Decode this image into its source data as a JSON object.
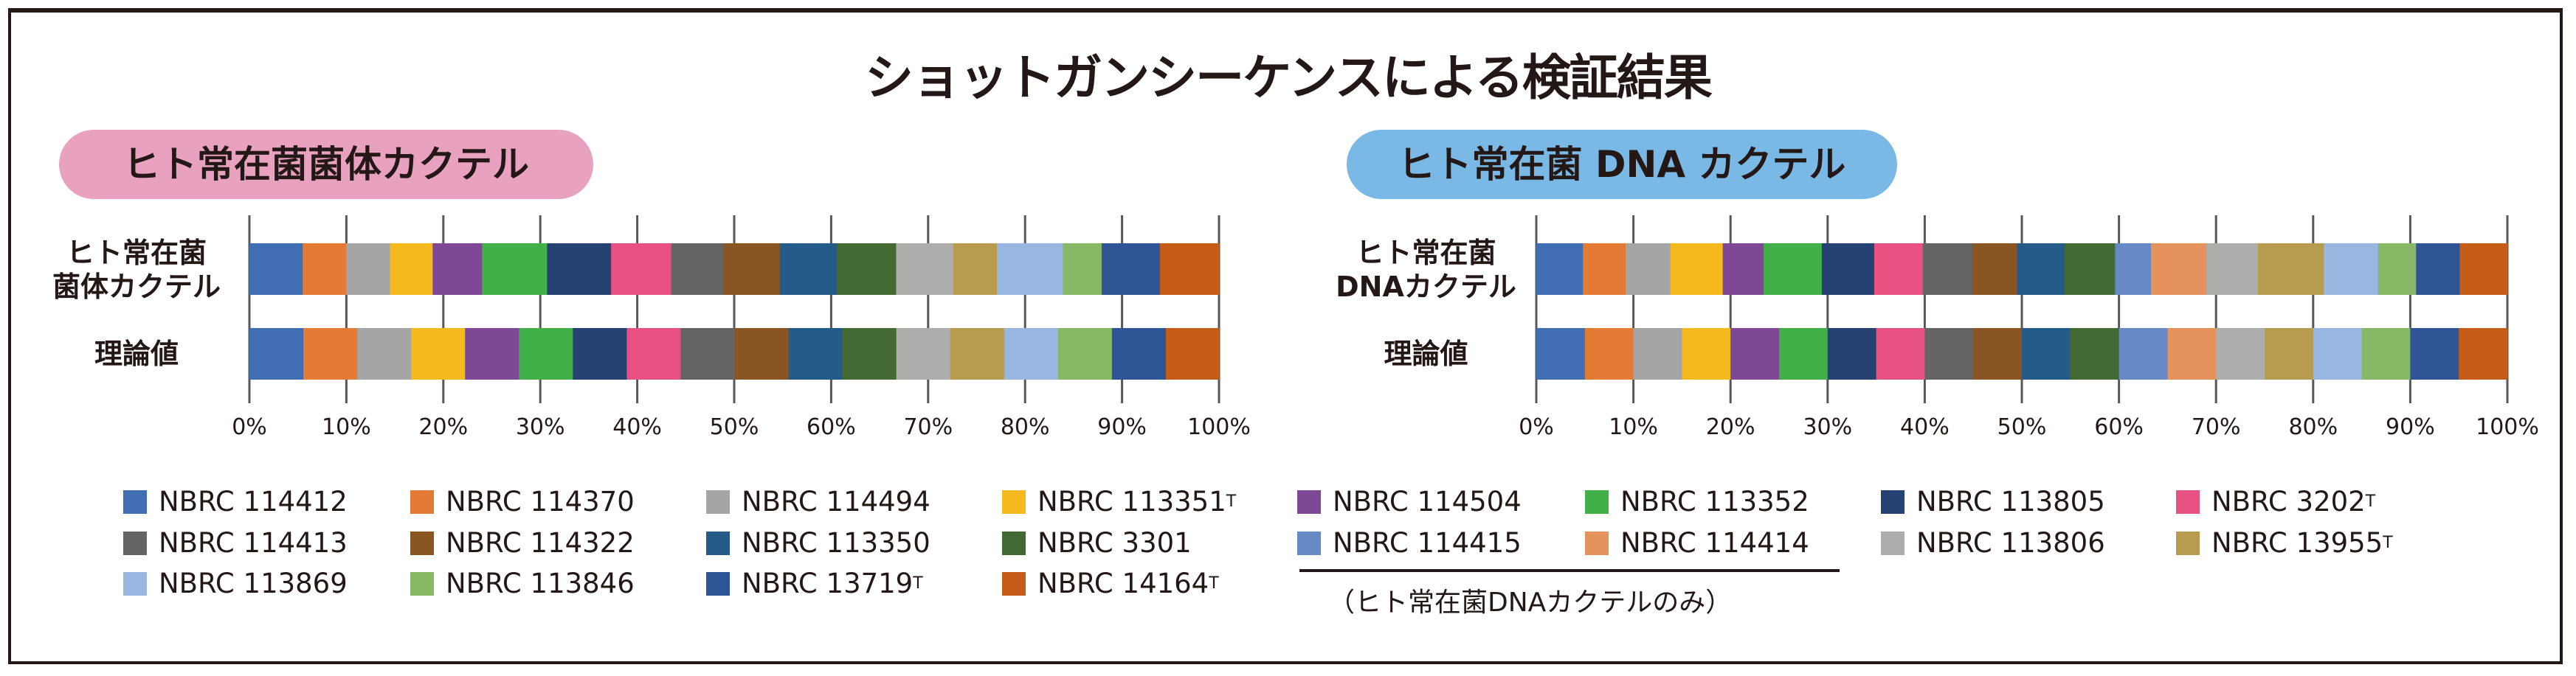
{
  "title": "ショットガンシーケンスによる検証結果",
  "chart_data": [
    {
      "type": "bar",
      "orientation": "horizontal-stacked-100",
      "title": "ヒト常在菌菌体カクテル",
      "title_color": "#e8a2bf",
      "categories": [
        "ヒト常在菌\n菌体カクテル",
        "理論値"
      ],
      "category_lines": [
        [
          "ヒト常在菌",
          "菌体カクテル"
        ],
        [
          "理論値"
        ]
      ],
      "xlim": [
        0,
        100
      ],
      "xticks": [
        "0%",
        "10%",
        "20%",
        "30%",
        "40%",
        "50%",
        "60%",
        "70%",
        "80%",
        "90%",
        "100%"
      ],
      "grid": true,
      "series": [
        {
          "name": "NBRC 114412",
          "values": [
            5.5,
            5.56
          ]
        },
        {
          "name": "NBRC 114370",
          "values": [
            4.5,
            5.56
          ]
        },
        {
          "name": "NBRC 114494",
          "values": [
            4.5,
            5.56
          ]
        },
        {
          "name": "NBRC 113351T",
          "values": [
            4.4,
            5.56
          ]
        },
        {
          "name": "NBRC 114504",
          "values": [
            5.1,
            5.56
          ]
        },
        {
          "name": "NBRC 113352",
          "values": [
            6.7,
            5.56
          ]
        },
        {
          "name": "NBRC 113805",
          "values": [
            6.6,
            5.56
          ]
        },
        {
          "name": "NBRC 3202T",
          "values": [
            6.2,
            5.56
          ]
        },
        {
          "name": "NBRC 114413",
          "values": [
            5.4,
            5.56
          ]
        },
        {
          "name": "NBRC 114322",
          "values": [
            5.8,
            5.56
          ]
        },
        {
          "name": "NBRC 113350",
          "values": [
            5.9,
            5.56
          ]
        },
        {
          "name": "NBRC 3301",
          "values": [
            6.1,
            5.56
          ]
        },
        {
          "name": "NBRC 113806",
          "values": [
            5.9,
            5.56
          ]
        },
        {
          "name": "NBRC 13955T",
          "values": [
            4.5,
            5.56
          ]
        },
        {
          "name": "NBRC 113869",
          "values": [
            6.8,
            5.56
          ]
        },
        {
          "name": "NBRC 113846",
          "values": [
            4.0,
            5.56
          ]
        },
        {
          "name": "NBRC 13719T",
          "values": [
            6.0,
            5.56
          ]
        },
        {
          "name": "NBRC 14164T",
          "values": [
            6.1,
            5.48
          ]
        }
      ]
    },
    {
      "type": "bar",
      "orientation": "horizontal-stacked-100",
      "title": "ヒト常在菌 DNA カクテル",
      "title_color": "#7ab8e6",
      "categories": [
        "ヒト常在菌\nDNAカクテル",
        "理論値"
      ],
      "category_lines": [
        [
          "ヒト常在菌",
          "DNAカクテル"
        ],
        [
          "理論値"
        ]
      ],
      "xlim": [
        0,
        100
      ],
      "xticks": [
        "0%",
        "10%",
        "20%",
        "30%",
        "40%",
        "50%",
        "60%",
        "70%",
        "80%",
        "90%",
        "100%"
      ],
      "grid": true,
      "series": [
        {
          "name": "NBRC 114412",
          "values": [
            4.8,
            5
          ]
        },
        {
          "name": "NBRC 114370",
          "values": [
            4.4,
            5
          ]
        },
        {
          "name": "NBRC 114494",
          "values": [
            4.6,
            5
          ]
        },
        {
          "name": "NBRC 113351T",
          "values": [
            5.4,
            5
          ]
        },
        {
          "name": "NBRC 114504",
          "values": [
            4.2,
            5
          ]
        },
        {
          "name": "NBRC 113352",
          "values": [
            6.0,
            5
          ]
        },
        {
          "name": "NBRC 113805",
          "values": [
            5.4,
            5
          ]
        },
        {
          "name": "NBRC 3202T",
          "values": [
            5.0,
            5
          ]
        },
        {
          "name": "NBRC 114413",
          "values": [
            5.1,
            5
          ]
        },
        {
          "name": "NBRC 114322",
          "values": [
            4.6,
            5
          ]
        },
        {
          "name": "NBRC 113350",
          "values": [
            4.9,
            5
          ]
        },
        {
          "name": "NBRC 3301",
          "values": [
            5.2,
            5
          ]
        },
        {
          "name": "NBRC 114415",
          "values": [
            3.7,
            5
          ]
        },
        {
          "name": "NBRC 114414",
          "values": [
            5.7,
            5
          ]
        },
        {
          "name": "NBRC 113806",
          "values": [
            5.3,
            5
          ]
        },
        {
          "name": "NBRC 13955T",
          "values": [
            6.8,
            5
          ]
        },
        {
          "name": "NBRC 113869",
          "values": [
            5.6,
            5
          ]
        },
        {
          "name": "NBRC 113846",
          "values": [
            3.9,
            5
          ]
        },
        {
          "name": "NBRC 13719T",
          "values": [
            4.5,
            5
          ]
        },
        {
          "name": "NBRC 14164T",
          "values": [
            4.9,
            5
          ]
        }
      ]
    }
  ],
  "legend": {
    "items": [
      {
        "code": "NBRC 114412",
        "sup": "",
        "color": "#416db3"
      },
      {
        "code": "NBRC 114370",
        "sup": "",
        "color": "#e37a35"
      },
      {
        "code": "NBRC 114494",
        "sup": "",
        "color": "#a5a5a5"
      },
      {
        "code": "NBRC 113351",
        "sup": "T",
        "color": "#f4b91d"
      },
      {
        "code": "NBRC 114504",
        "sup": "",
        "color": "#7e4897"
      },
      {
        "code": "NBRC 113352",
        "sup": "",
        "color": "#42b049"
      },
      {
        "code": "NBRC 113805",
        "sup": "",
        "color": "#254273"
      },
      {
        "code": "NBRC 3202",
        "sup": "T",
        "color": "#e85282"
      },
      {
        "code": "NBRC 114413",
        "sup": "",
        "color": "#646464"
      },
      {
        "code": "NBRC 114322",
        "sup": "",
        "color": "#885523"
      },
      {
        "code": "NBRC 113350",
        "sup": "",
        "color": "#245b88"
      },
      {
        "code": "NBRC 3301",
        "sup": "",
        "color": "#426a32"
      },
      {
        "code": "NBRC 114415",
        "sup": "",
        "color": "#6789c5"
      },
      {
        "code": "NBRC 114414",
        "sup": "",
        "color": "#e6925c"
      },
      {
        "code": "NBRC 113806",
        "sup": "",
        "color": "#adadab"
      },
      {
        "code": "NBRC 13955",
        "sup": "T",
        "color": "#b79b4f"
      },
      {
        "code": "NBRC 113869",
        "sup": "",
        "color": "#97b6e0"
      },
      {
        "code": "NBRC 113846",
        "sup": "",
        "color": "#88b866"
      },
      {
        "code": "NBRC 13719",
        "sup": "T",
        "color": "#2f5597"
      },
      {
        "code": "NBRC 14164",
        "sup": "T",
        "color": "#c55d19"
      }
    ],
    "dna_only_note": "（ヒト常在菌DNAカクテルのみ）"
  }
}
